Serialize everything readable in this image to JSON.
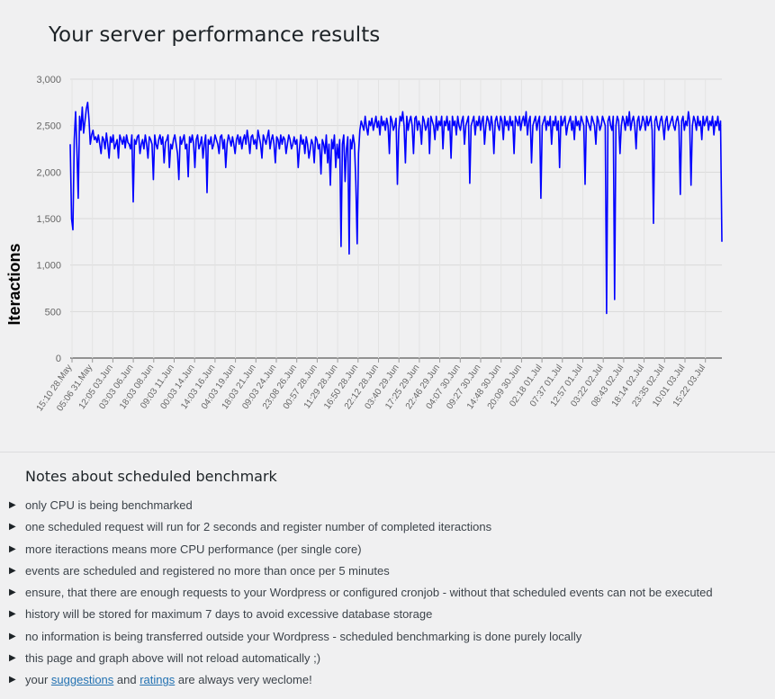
{
  "page": {
    "title": "Your server performance results"
  },
  "chart_data": {
    "type": "line",
    "title": "",
    "xlabel": "",
    "ylabel": "Iteractions",
    "ylim": [
      0,
      3000
    ],
    "yticks": [
      0,
      500,
      1000,
      1500,
      2000,
      2500,
      3000
    ],
    "ytick_labels": [
      "0",
      "500",
      "1,000",
      "1,500",
      "2,000",
      "2,500",
      "3,000"
    ],
    "xtick_labels": [
      "15:10 28.May",
      "05:06 31.May",
      "12:05 03.Jun",
      "03:03 06.Jun",
      "18:03 08.Jun",
      "09:03 11.Jun",
      "00:03 14.Jun",
      "14:03 16.Jun",
      "04:03 19.Jun",
      "18:03 21.Jun",
      "09:03 24.Jun",
      "23:08 26.Jun",
      "00:57 28.Jun",
      "11:29 28.Jun",
      "16:50 28.Jun",
      "22:12 28.Jun",
      "03:40 29.Jun",
      "17:25 29.Jun",
      "22:46 29.Jun",
      "04:07 30.Jun",
      "09:27 30.Jun",
      "14:48 30.Jun",
      "20:09 30.Jun",
      "02:18 01.Jul",
      "07:37 01.Jul",
      "12:57 01.Jul",
      "03:22 02.Jul",
      "08:43 02.Jul",
      "18:14 02.Jul",
      "23:35 02.Jul",
      "10:01 03.Jul",
      "15:22 03.Jul"
    ],
    "grid": true,
    "legend": "none",
    "line_color": "#0000ff",
    "series": [
      {
        "name": "Iteractions",
        "values": [
          2300,
          1500,
          1380,
          2350,
          2650,
          2250,
          1720,
          2600,
          2450,
          2700,
          2420,
          2550,
          2680,
          2750,
          2560,
          2300,
          2400,
          2450,
          2350,
          2380,
          2320,
          2400,
          2300,
          2200,
          2380,
          2350,
          2250,
          2420,
          2300,
          2150,
          2380,
          2320,
          2400,
          2250,
          2300,
          2350,
          2150,
          2400,
          2350,
          2300,
          2380,
          2260,
          2400,
          2320,
          2300,
          2250,
          2400,
          1680,
          2350,
          2300,
          2380,
          2400,
          2200,
          2300,
          2350,
          2250,
          2400,
          2300,
          2150,
          2380,
          2350,
          2300,
          1920,
          2400,
          2300,
          2250,
          2350,
          2400,
          2300,
          2380,
          2100,
          2320,
          2350,
          2400,
          2050,
          2300,
          2250,
          2350,
          2400,
          2300,
          2200,
          1920,
          2380,
          2300,
          2350,
          2400,
          2250,
          2300,
          1950,
          2380,
          2320,
          2400,
          2300,
          2050,
          2350,
          2400,
          2250,
          2300,
          2380,
          2150,
          2300,
          2400,
          1780,
          2350,
          2300,
          2380,
          2250,
          2300,
          2400,
          2350,
          2300,
          2200,
          2380,
          2400,
          2250,
          2350,
          2050,
          2300,
          2400,
          2350,
          2280,
          2380,
          2300,
          2200,
          2350,
          2400,
          2300,
          2380,
          2250,
          2350,
          2400,
          2300,
          2450,
          2350,
          2200,
          2380,
          2400,
          2300,
          2350,
          2250,
          2450,
          2380,
          2300,
          2150,
          2400,
          2350,
          2300,
          2380,
          2450,
          2250,
          2350,
          2400,
          2300,
          2100,
          2380,
          2350,
          2250,
          2400,
          2300,
          2380,
          2350,
          2200,
          2300,
          2400,
          2350,
          2250,
          2300,
          2380,
          2300,
          2350,
          2050,
          2250,
          2400,
          2300,
          2350,
          2200,
          2380,
          2300,
          2150,
          2250,
          2350,
          2300,
          2100,
          2380,
          2350,
          2250,
          2300,
          1980,
          2350,
          2300,
          2200,
          2400,
          2100,
          2300,
          1860,
          2350,
          2250,
          2400,
          2050,
          2300,
          2150,
          2350,
          1200,
          2300,
          2400,
          1900,
          2250,
          2380,
          1120,
          2350,
          2250,
          2400,
          2300,
          1900,
          1230,
          2200,
          2450,
          2550,
          2500,
          2450,
          2600,
          2480,
          2400,
          2550,
          2500,
          2580,
          2450,
          2520,
          2600,
          2480,
          2550,
          2400,
          2600,
          2500,
          2550,
          2450,
          2580,
          2500,
          2200,
          2600,
          2550,
          2450,
          2500,
          2580,
          1870,
          2450,
          2600,
          2550,
          2650,
          2500,
          2100,
          2600,
          2450,
          2550,
          2600,
          2500,
          2200,
          2580,
          2600,
          2450,
          2550,
          2500,
          2300,
          2600,
          2550,
          2450,
          2500,
          2580,
          2200,
          2600,
          2550,
          2500,
          2350,
          2600,
          2450,
          2550,
          2500,
          2600,
          2250,
          2550,
          2500,
          2600,
          2450,
          2550,
          2150,
          2600,
          2500,
          2550,
          2400,
          2600,
          2500,
          2450,
          2550,
          2600,
          2300,
          2500,
          2550,
          2600,
          1880,
          2500,
          2550,
          2600,
          2400,
          2550,
          2500,
          2600,
          2450,
          2550,
          2600,
          2300,
          2500,
          2600,
          2550,
          2450,
          2600,
          2500,
          2200,
          2550,
          2600,
          2500,
          2450,
          2600,
          2550,
          2350,
          2600,
          2500,
          2550,
          2450,
          2600,
          2500,
          2550,
          2200,
          2600,
          2550,
          2500,
          2600,
          2450,
          2550,
          2600,
          2500,
          2650,
          2400,
          2550,
          2600,
          2100,
          2500,
          2550,
          2600,
          2450,
          2550,
          2600,
          1720,
          2500,
          2550,
          2600,
          2450,
          2550,
          2500,
          2600,
          2300,
          2550,
          2500,
          2600,
          2450,
          2550,
          2050,
          2600,
          2500,
          2550,
          2600,
          2400,
          2500,
          2550,
          2600,
          2450,
          2550,
          2350,
          2600,
          2500,
          2550,
          2450,
          2600,
          2550,
          2500,
          1870,
          2600,
          2550,
          2500,
          2450,
          2600,
          2550,
          2500,
          2300,
          2600,
          2550,
          2450,
          2500,
          2600,
          2550,
          2500,
          480,
          2550,
          2600,
          2500,
          2450,
          2600,
          630,
          2500,
          2600,
          2550,
          2200,
          2500,
          2600,
          2550,
          2450,
          2600,
          2500,
          2650,
          2450,
          2550,
          2600,
          2500,
          2250,
          2550,
          2600,
          2450,
          2500,
          2600,
          2550,
          2450,
          2600,
          2500,
          2550,
          2600,
          2450,
          1450,
          2550,
          2600,
          2500,
          2450,
          2550,
          2600,
          2500,
          2350,
          2550,
          2600,
          2450,
          2500,
          2550,
          2600,
          2500,
          2450,
          2550,
          2600,
          2500,
          1760,
          2550,
          2600,
          2450,
          2550,
          2500,
          2650,
          2550,
          1860,
          2500,
          2600,
          2550,
          2450,
          2600,
          2500,
          2550,
          2350,
          2600,
          2500,
          2550,
          2600,
          2450,
          2550,
          2500,
          2600,
          2400,
          2550,
          2500,
          2600,
          2450,
          2550,
          1250
        ]
      }
    ]
  },
  "notes": {
    "title": "Notes about scheduled benchmark",
    "items": [
      "only CPU is being benchmarked",
      "one scheduled request will run for 2 seconds and register number of completed iteractions",
      "more iteractions means more CPU performance (per single core)",
      "events are scheduled and registered no more than once per 5 minutes",
      "ensure, that there are enough requests to your Wordpress or configured cronjob - without that scheduled events can not be executed",
      "history will be stored for maximum 7 days to avoid excessive database storage",
      "no information is being transferred outside your Wordpress - scheduled benchmarking is done purely locally",
      "this page and graph above will not reload automatically ;)"
    ],
    "last_item": {
      "prefix": "your ",
      "link1": "suggestions",
      "middle": " and ",
      "link2": "ratings",
      "suffix": " are always very weclome!"
    }
  },
  "icons": {
    "bullet": "triangle-right-icon"
  }
}
